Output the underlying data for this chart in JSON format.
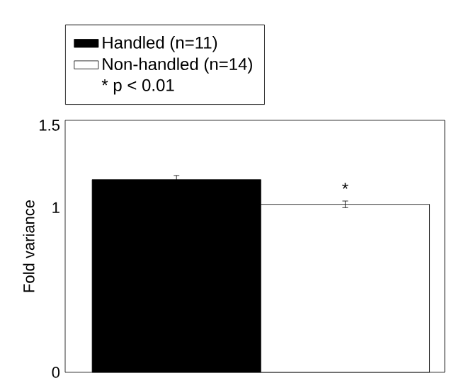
{
  "chart_data": {
    "type": "bar",
    "ylabel": "Fold variance",
    "categories": [
      null
    ],
    "series": [
      {
        "name": "Handled (n=11)",
        "color": "#000000",
        "values": [
          1.17
        ],
        "errors": [
          0.025
        ]
      },
      {
        "name": "Non-handled (n=14)",
        "color": "#ffffff",
        "values": [
          1.02
        ],
        "errors": [
          0.02
        ]
      }
    ],
    "ylim": [
      0,
      1.53
    ],
    "yticks": [
      0,
      1,
      1.5
    ],
    "legend": "top left",
    "grid": false,
    "annotations": [
      "*",
      "* p < 0.01"
    ]
  }
}
